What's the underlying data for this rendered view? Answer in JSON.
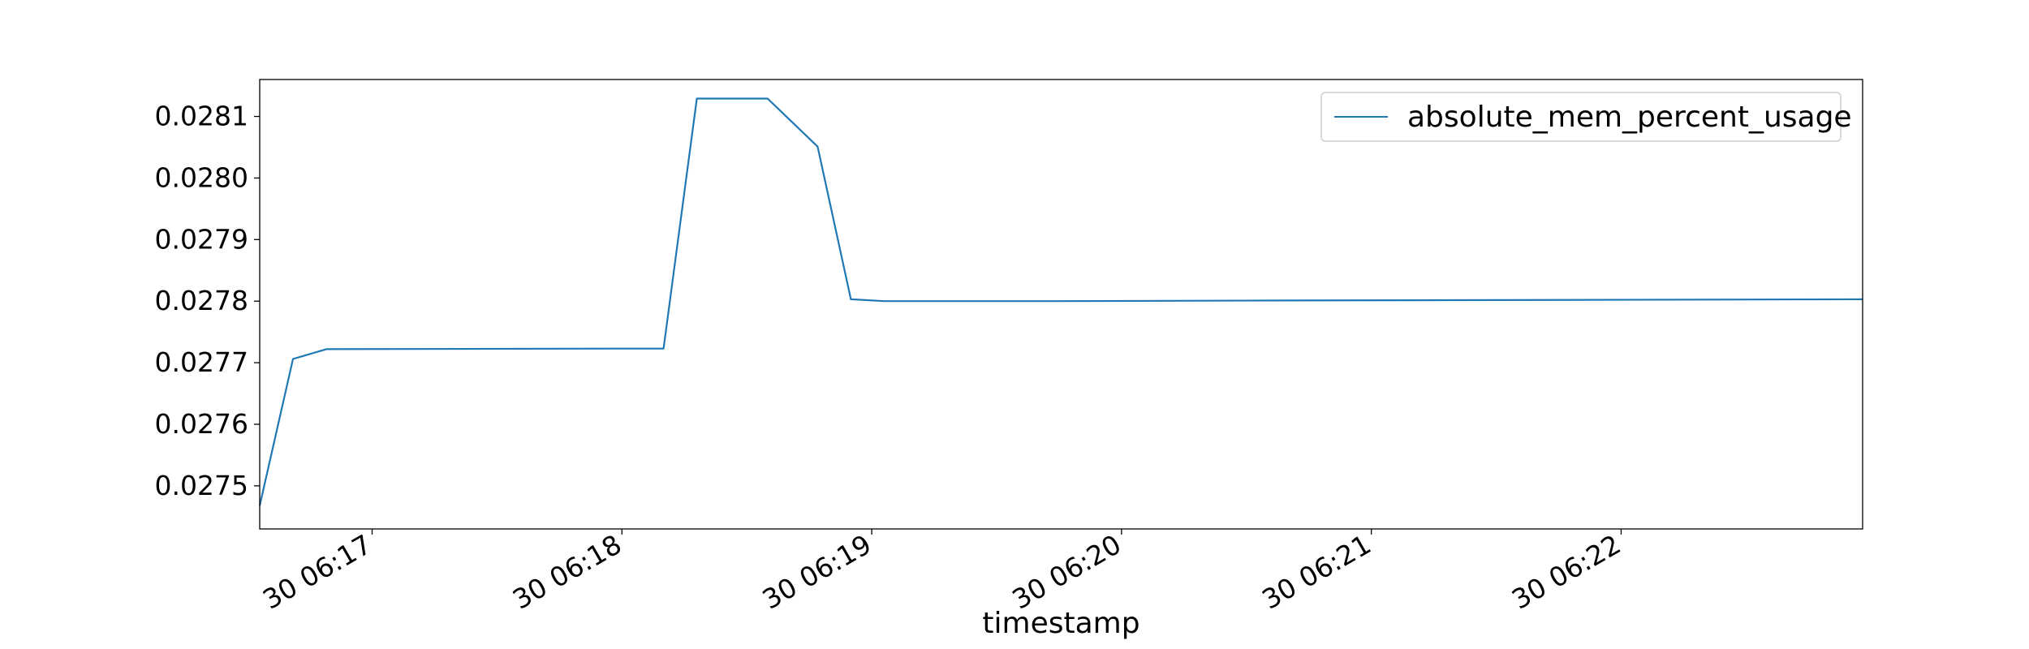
{
  "chart_data": {
    "type": "line",
    "title": "",
    "xlabel": "timestamp",
    "ylabel": "",
    "x_unit": "time (HH:MM:SS), day 30",
    "xlim": [
      "06:16:33",
      "06:22:58"
    ],
    "ylim": [
      0.02743,
      0.02816
    ],
    "x_ticks": [
      {
        "t": "06:17:00",
        "label": "30 06:17"
      },
      {
        "t": "06:18:00",
        "label": "30 06:18"
      },
      {
        "t": "06:19:00",
        "label": "30 06:19"
      },
      {
        "t": "06:20:00",
        "label": "30 06:20"
      },
      {
        "t": "06:21:00",
        "label": "30 06:21"
      },
      {
        "t": "06:22:00",
        "label": "30 06:22"
      }
    ],
    "y_ticks": [
      {
        "v": 0.0275,
        "label": "0.0275"
      },
      {
        "v": 0.0276,
        "label": "0.0276"
      },
      {
        "v": 0.0277,
        "label": "0.0277"
      },
      {
        "v": 0.0278,
        "label": "0.0278"
      },
      {
        "v": 0.0279,
        "label": "0.0279"
      },
      {
        "v": 0.028,
        "label": "0.0280"
      },
      {
        "v": 0.0281,
        "label": "0.0281"
      }
    ],
    "grid": false,
    "legend_position": "top-right",
    "series": [
      {
        "name": "absolute_mem_percent_usage",
        "color": "#1f77b4",
        "points": [
          {
            "t": "06:16:33",
            "y": 0.027468
          },
          {
            "t": "06:16:41",
            "y": 0.027706
          },
          {
            "t": "06:16:49",
            "y": 0.027722
          },
          {
            "t": "06:18:10",
            "y": 0.027723
          },
          {
            "t": "06:18:18",
            "y": 0.028129
          },
          {
            "t": "06:18:35",
            "y": 0.028129
          },
          {
            "t": "06:18:47",
            "y": 0.028051
          },
          {
            "t": "06:18:55",
            "y": 0.027803
          },
          {
            "t": "06:19:03",
            "y": 0.0278
          },
          {
            "t": "06:19:45",
            "y": 0.0278
          },
          {
            "t": "06:20:40",
            "y": 0.027801
          },
          {
            "t": "06:22:58",
            "y": 0.027803
          }
        ]
      }
    ]
  }
}
